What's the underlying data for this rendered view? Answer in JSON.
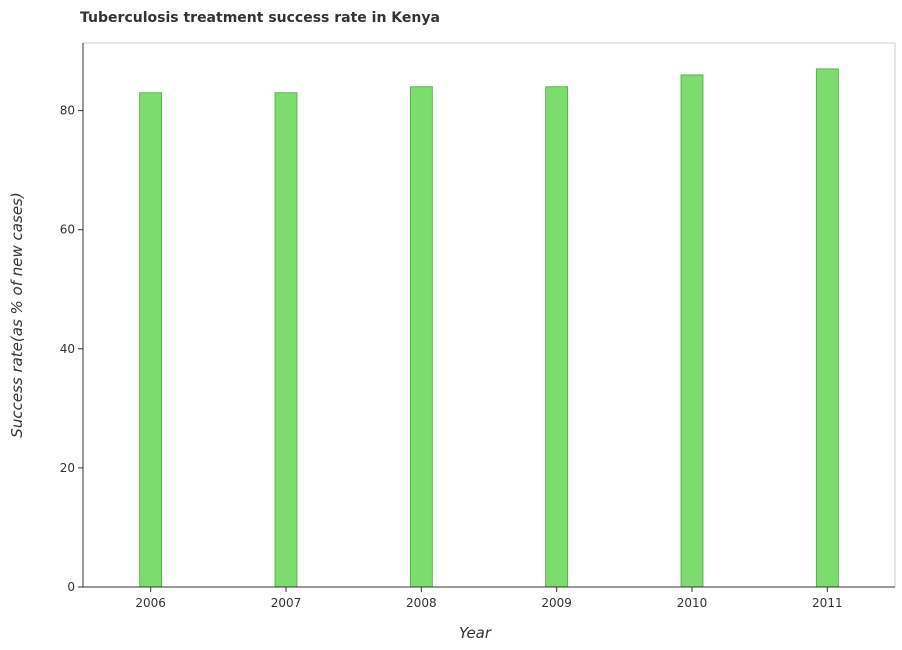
{
  "chart_data": {
    "type": "bar",
    "title": "Tuberculosis treatment success rate in Kenya",
    "xlabel": "Year",
    "ylabel": "Success rate(as % of new cases)",
    "categories": [
      "2006",
      "2007",
      "2008",
      "2009",
      "2010",
      "2011"
    ],
    "values": [
      83,
      83,
      84,
      84,
      86,
      87
    ],
    "ylim": [
      0,
      91.35
    ],
    "yticks": [
      0,
      20,
      40,
      60,
      80
    ],
    "grid": false,
    "bar_color": "#7ddc6e"
  }
}
